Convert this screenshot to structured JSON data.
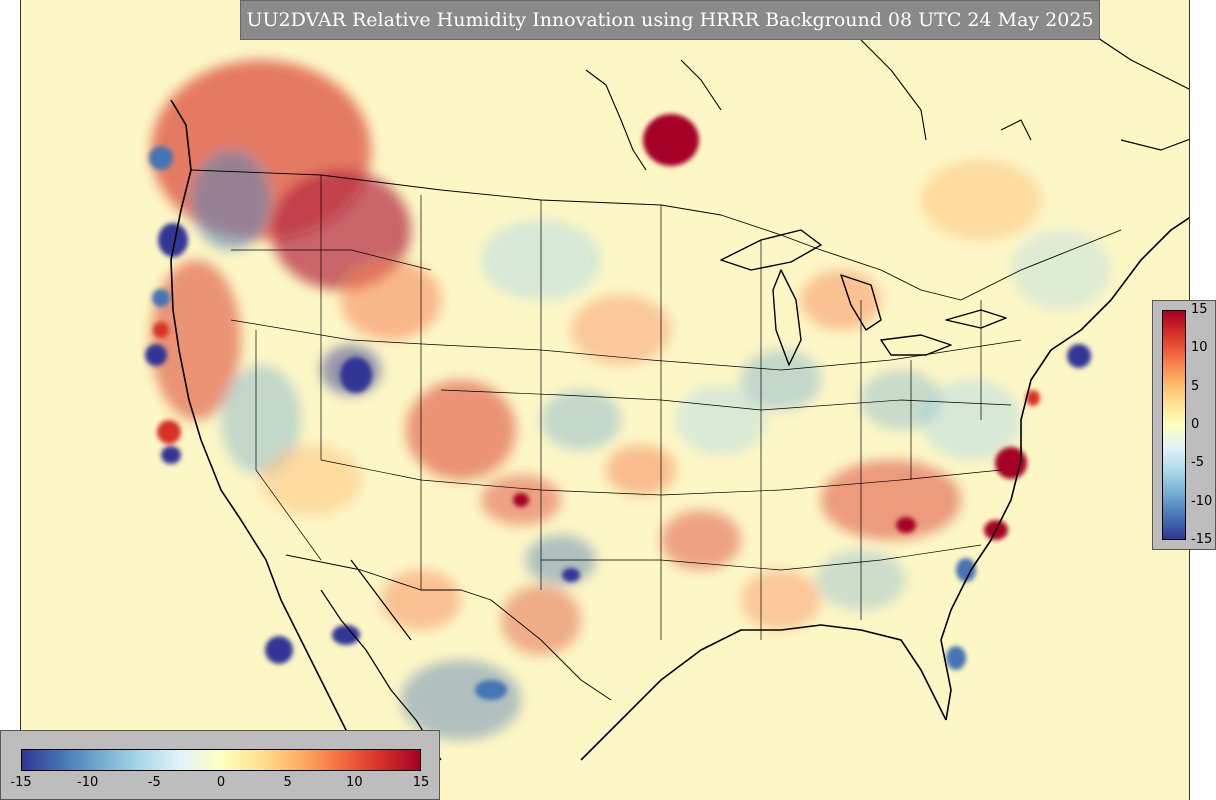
{
  "title": "UU2DVAR Relative Humidity Innovation using HRRR Background 08 UTC 24 May 2025",
  "colorbar": {
    "colormap": "RdYlBu_r",
    "min": -15,
    "max": 15,
    "vertical_ticks": [
      "15",
      "10",
      "5",
      "0",
      "-5",
      "-10",
      "-15"
    ],
    "horizontal_ticks": [
      "-15",
      "-10",
      "-5",
      "0",
      "5",
      "10",
      "15"
    ],
    "colors": [
      "#313695",
      "#4575b4",
      "#74add1",
      "#abd9e9",
      "#e0f3f8",
      "#ffffbf",
      "#fee090",
      "#fdae61",
      "#f46d43",
      "#d73027",
      "#a50026"
    ]
  },
  "map": {
    "projection": "Lambert Conformal (CONUS)",
    "background_color": "#fdf7c6"
  }
}
